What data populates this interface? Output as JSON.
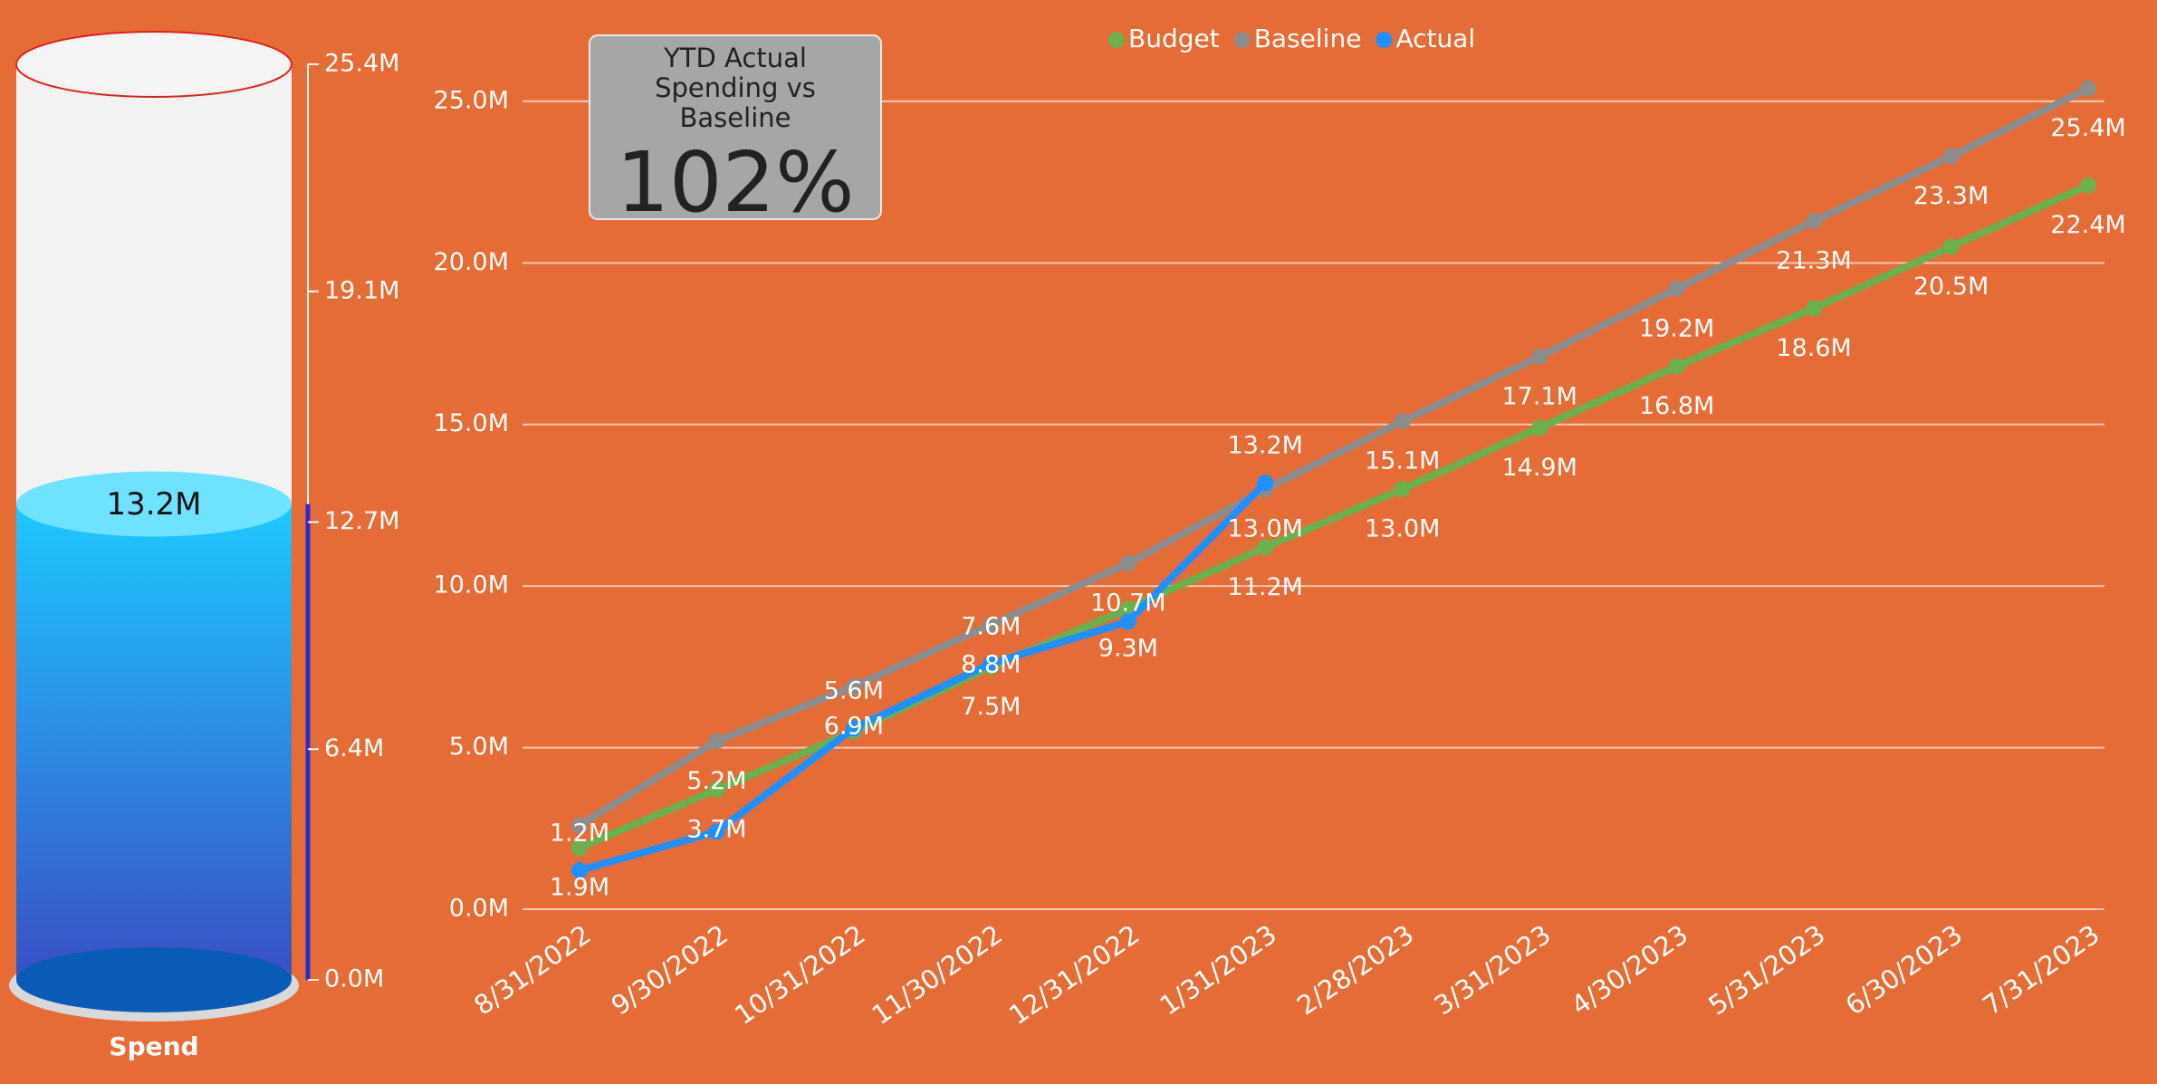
{
  "chart_data": [
    {
      "type": "gauge",
      "label": "Spend",
      "values": [
        13.2
      ],
      "value_labels": [
        "13.2M"
      ],
      "ylim": [
        0,
        25.4
      ],
      "yticks": [
        {
          "value": 0,
          "label": "0.0M"
        },
        {
          "value": 6.4,
          "label": "6.4M"
        },
        {
          "value": 12.7,
          "label": "12.7M"
        },
        {
          "value": 19.1,
          "label": "19.1M"
        },
        {
          "value": 25.4,
          "label": "25.4M"
        }
      ],
      "color": "#1ec8ff"
    },
    {
      "type": "line",
      "legend": "top",
      "categories": [
        "8/31/2022",
        "9/30/2022",
        "10/31/2022",
        "11/30/2022",
        "12/31/2022",
        "1/31/2023",
        "2/28/2023",
        "3/31/2023",
        "4/30/2023",
        "5/31/2023",
        "6/30/2023",
        "7/31/2023"
      ],
      "series": [
        {
          "name": "Budget",
          "color": "#6ab04c",
          "values": [
            1.9,
            3.7,
            5.5,
            7.5,
            9.3,
            11.2,
            13.0,
            14.9,
            16.8,
            18.6,
            20.5,
            22.4
          ],
          "value_labels": [
            "1.9M",
            "3.7M",
            null,
            "7.5M",
            "9.3M",
            "11.2M",
            "13.0M",
            "14.9M",
            "16.8M",
            "18.6M",
            "20.5M",
            "22.4M"
          ]
        },
        {
          "name": "Baseline",
          "color": "#8c8c8c",
          "values": [
            2.6,
            5.2,
            6.9,
            8.8,
            10.7,
            13.0,
            15.1,
            17.1,
            19.2,
            21.3,
            23.3,
            25.4
          ],
          "value_labels": [
            null,
            "5.2M",
            "6.9M",
            "8.8M",
            "10.7M",
            "13.0M",
            "15.1M",
            "17.1M",
            "19.2M",
            "21.3M",
            "23.3M",
            "25.4M"
          ]
        },
        {
          "name": "Actual",
          "color": "#1e90ff",
          "values": [
            1.2,
            2.4,
            5.6,
            7.6,
            8.9,
            13.2,
            null,
            null,
            null,
            null,
            null,
            null
          ],
          "value_labels": [
            "1.2M",
            null,
            "5.6M",
            "7.6M",
            null,
            "13.2M",
            null,
            null,
            null,
            null,
            null,
            null
          ]
        }
      ],
      "ylim": [
        0,
        27.8
      ],
      "yticks": [
        {
          "value": 0,
          "label": "0.0M"
        },
        {
          "value": 5,
          "label": "5.0M"
        },
        {
          "value": 10,
          "label": "10.0M"
        },
        {
          "value": 15,
          "label": "15.0M"
        },
        {
          "value": 20,
          "label": "20.0M"
        },
        {
          "value": 25,
          "label": "25.0M"
        }
      ],
      "grid": true
    },
    {
      "type": "card",
      "title": "YTD Actual Spending vs Baseline",
      "values": [
        102
      ],
      "value_labels": [
        "102%"
      ]
    }
  ]
}
